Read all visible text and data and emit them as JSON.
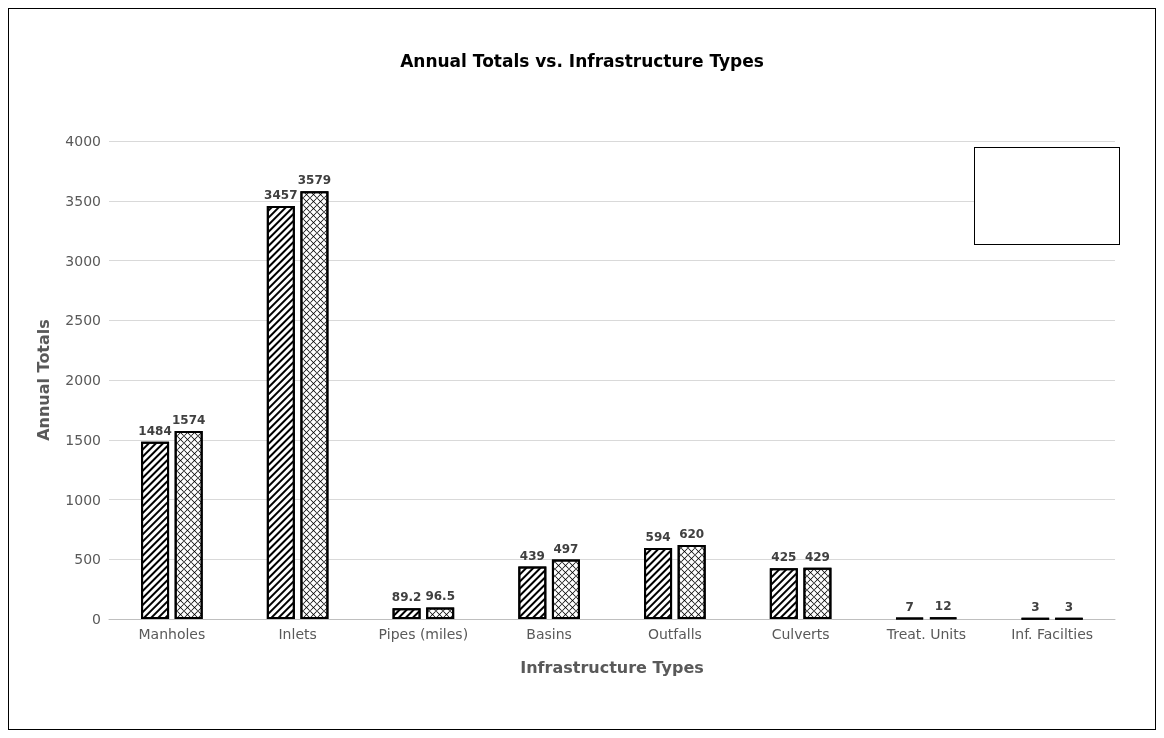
{
  "chart_data": {
    "type": "bar",
    "title": "Annual Totals vs. Infrastructure Types",
    "xlabel": "Infrastructure Types",
    "ylabel": "Annual Totals",
    "categories": [
      "Manholes",
      "Inlets",
      "Pipes (miles)",
      "Basins",
      "Outfalls",
      "Culverts",
      "Treat. Units",
      "Inf. Facilties"
    ],
    "series": [
      {
        "color": "#000000",
        "values": [
          1484,
          3457,
          89.2,
          439,
          594,
          425,
          7,
          3
        ]
      },
      {
        "color": "#000000",
        "values": [
          1574,
          3579,
          96.5,
          497,
          620,
          429,
          12,
          3
        ]
      }
    ],
    "ylim": [
      0,
      4000
    ],
    "yticks": [
      0,
      500,
      1000,
      1500,
      2000,
      2500,
      3000,
      3500,
      4000
    ],
    "grid": "y",
    "data_labels": true
  }
}
